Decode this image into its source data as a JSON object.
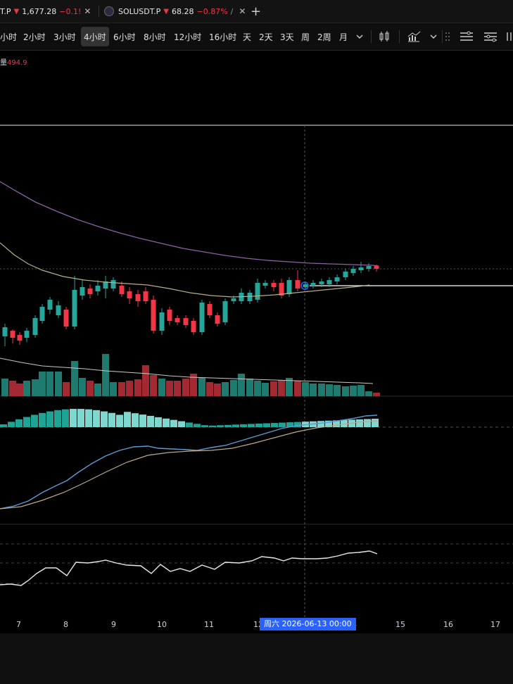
{
  "tabs": [
    {
      "symbol": "T.P",
      "arrow": "▼",
      "price": "1,677.28",
      "change": "−0.1!"
    },
    {
      "symbol": "SOLUSDT.P",
      "arrow": "▼",
      "price": "68.28",
      "change": "−0.87%",
      "overflow": "/"
    }
  ],
  "timeframes": [
    "小时",
    "2小时",
    "3小时",
    "4小时",
    "6小时",
    "8小时",
    "12小时",
    "16小时",
    "天",
    "2天",
    "3天",
    "周",
    "2周",
    "月"
  ],
  "active_timeframe": "4小时",
  "volume_indicator": {
    "label": "量",
    "value": "494.9"
  },
  "x_axis_labels": [
    "7",
    "8",
    "9",
    "10",
    "11",
    "12",
    "4",
    "15",
    "16",
    "17"
  ],
  "crosshair_time": "周六 2026-06-13   00:00",
  "colors": {
    "up": "#26a69a",
    "down": "#f23645",
    "ma_long": "#8e5fa8",
    "ma_short": "#b9ae85",
    "macd": "#5b9bd5",
    "signal": "#bfa98a",
    "crosshair": "#2962ff"
  },
  "icons": [
    "close-icon",
    "add-tab-icon",
    "chevron-down-icon",
    "candle-style-icon",
    "indicators-icon",
    "layout-icon",
    "settings-icon"
  ]
}
